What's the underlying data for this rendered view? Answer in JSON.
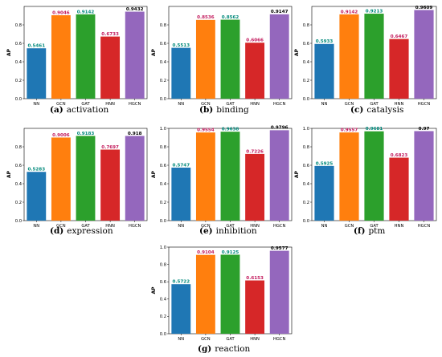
{
  "colors": {
    "NN": "#1f77b4",
    "GCN": "#ff7f0e",
    "GAT": "#2ca02c",
    "HNN": "#d62728",
    "HGCN": "#9467bd",
    "label_default": "#000000",
    "label_gcn": "#c2185b",
    "label_hnn": "#c2185b",
    "label_nn": "#00897b",
    "label_gat": "#00897b"
  },
  "chart_data": [
    {
      "type": "bar",
      "caption_letter": "(a)",
      "caption_text": "activation",
      "categories": [
        "NN",
        "GCN",
        "GAT",
        "HNN",
        "HGCN"
      ],
      "values": [
        0.5461,
        0.9046,
        0.9142,
        0.6733,
        0.9432
      ],
      "value_labels": [
        "0.5461",
        "0.9046",
        "0.9142",
        "0.6733",
        "0.9432"
      ],
      "ylabel": "AP",
      "ylim": [
        0,
        1.0
      ],
      "yticks": [
        "0.0",
        "0.2",
        "0.4",
        "0.6",
        "0.8"
      ],
      "tick_values": [
        0,
        0.2,
        0.4,
        0.6,
        0.8
      ]
    },
    {
      "type": "bar",
      "caption_letter": "(b)",
      "caption_text": "binding",
      "categories": [
        "NN",
        "GCN",
        "GAT",
        "HNN",
        "HGCN"
      ],
      "values": [
        0.5513,
        0.8536,
        0.8562,
        0.6066,
        0.9147
      ],
      "value_labels": [
        "0.5513",
        "0.8536",
        "0.8562",
        "0.6066",
        "0.9147"
      ],
      "ylabel": "AP",
      "ylim": [
        0,
        1.0
      ],
      "yticks": [
        "0.0",
        "0.2",
        "0.4",
        "0.6",
        "0.8"
      ],
      "tick_values": [
        0,
        0.2,
        0.4,
        0.6,
        0.8
      ]
    },
    {
      "type": "bar",
      "caption_letter": "(c)",
      "caption_text": "catalysis",
      "categories": [
        "NN",
        "GCN",
        "GAT",
        "HNN",
        "HGCN"
      ],
      "values": [
        0.5933,
        0.9142,
        0.9213,
        0.6467,
        0.9609
      ],
      "value_labels": [
        "0.5933",
        "0.9142",
        "0.9213",
        "0.6467",
        "0.9609"
      ],
      "ylabel": "AP",
      "ylim": [
        0,
        1.0
      ],
      "yticks": [
        "0.0",
        "0.2",
        "0.4",
        "0.6",
        "0.8"
      ],
      "tick_values": [
        0,
        0.2,
        0.4,
        0.6,
        0.8
      ]
    },
    {
      "type": "bar",
      "caption_letter": "(d)",
      "caption_text": "expression",
      "categories": [
        "NN",
        "GCN",
        "GAT",
        "HNN",
        "HGCN"
      ],
      "values": [
        0.5283,
        0.9006,
        0.9183,
        0.7697,
        0.918
      ],
      "value_labels": [
        "0.5283",
        "0.9006",
        "0.9183",
        "0.7697",
        "0.918"
      ],
      "ylabel": "AP",
      "ylim": [
        0,
        1.0
      ],
      "yticks": [
        "0.0",
        "0.2",
        "0.4",
        "0.6",
        "0.8"
      ],
      "tick_values": [
        0,
        0.2,
        0.4,
        0.6,
        0.8
      ]
    },
    {
      "type": "bar",
      "caption_letter": "(e)",
      "caption_text": "inhibition",
      "categories": [
        "NN",
        "GCN",
        "GAT",
        "HNN",
        "HGCN"
      ],
      "values": [
        0.5747,
        0.9554,
        0.9638,
        0.7226,
        0.9796
      ],
      "value_labels": [
        "0.5747",
        "0.9554",
        "0.9638",
        "0.7226",
        "0.9796"
      ],
      "ylabel": "AP",
      "ylim": [
        0,
        1.0
      ],
      "yticks": [
        "0.0",
        "0.2",
        "0.4",
        "0.6",
        "0.8",
        "1.0"
      ],
      "tick_values": [
        0,
        0.2,
        0.4,
        0.6,
        0.8,
        1.0
      ]
    },
    {
      "type": "bar",
      "caption_letter": "(f)",
      "caption_text": "ptm",
      "categories": [
        "NN",
        "GCN",
        "GAT",
        "HNN",
        "HGCN"
      ],
      "values": [
        0.5925,
        0.9557,
        0.9681,
        0.6823,
        0.97
      ],
      "value_labels": [
        "0.5925",
        "0.9557",
        "0.9681",
        "0.6823",
        "0.97"
      ],
      "ylabel": "AP",
      "ylim": [
        0,
        1.0
      ],
      "yticks": [
        "0.0",
        "0.2",
        "0.4",
        "0.6",
        "0.8",
        "1.0"
      ],
      "tick_values": [
        0,
        0.2,
        0.4,
        0.6,
        0.8,
        1.0
      ]
    },
    {
      "type": "bar",
      "caption_letter": "(g)",
      "caption_text": "reaction",
      "categories": [
        "NN",
        "GCN",
        "GAT",
        "HNN",
        "HGCN"
      ],
      "values": [
        0.5722,
        0.9104,
        0.9125,
        0.6153,
        0.9577
      ],
      "value_labels": [
        "0.5722",
        "0.9104",
        "0.9125",
        "0.6153",
        "0.9577"
      ],
      "ylabel": "AP",
      "ylim": [
        0,
        1.0
      ],
      "yticks": [
        "0.0",
        "0.2",
        "0.4",
        "0.6",
        "0.8",
        "1.0"
      ],
      "tick_values": [
        0,
        0.2,
        0.4,
        0.6,
        0.8,
        1.0
      ]
    }
  ]
}
